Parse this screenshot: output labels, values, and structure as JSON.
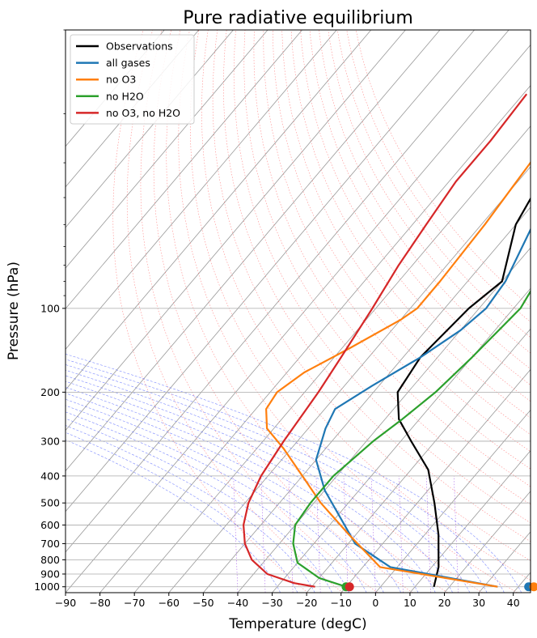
{
  "chart_data": {
    "type": "line",
    "subtype": "skew-T log-p",
    "title": "Pure radiative equilibrium",
    "xlabel": "Temperature (degC)",
    "ylabel": "Pressure (hPa)",
    "xlim": [
      -90,
      45
    ],
    "ylim_hPa": [
      1050,
      10
    ],
    "y_scale": "log",
    "x_ticks": [
      -90,
      -80,
      -70,
      -60,
      -50,
      -40,
      -30,
      -20,
      -10,
      0,
      10,
      20,
      30,
      40
    ],
    "y_ticks": [
      100,
      200,
      300,
      400,
      500,
      600,
      700,
      800,
      900,
      1000
    ],
    "y_tick_labels": [
      "100",
      "200",
      "300",
      "400",
      "500",
      "600",
      "700",
      "800",
      "900",
      "1000"
    ],
    "legend_position": "top-left",
    "grid": true,
    "background_lines": [
      "isotherms (gray)",
      "dry adiabats (red dotted)",
      "moist adiabats (blue dashed)",
      "mixing ratio lines (purple dotted)"
    ],
    "series": [
      {
        "name": "Observations",
        "color": "#000000",
        "points": [
          [
            15.5,
            1000
          ],
          [
            12,
            850
          ],
          [
            4,
            650
          ],
          [
            -5,
            500
          ],
          [
            -15,
            380
          ],
          [
            -27,
            300
          ],
          [
            -36,
            250
          ],
          [
            -43,
            200
          ],
          [
            -45,
            150
          ],
          [
            -43,
            100
          ],
          [
            -40,
            80
          ],
          [
            -50,
            50
          ],
          [
            -55,
            30
          ],
          [
            -55,
            20
          ],
          [
            -56,
            10
          ]
        ]
      },
      {
        "name": "all gases",
        "color": "#1f77b4",
        "points": [
          [
            34,
            1000
          ],
          [
            -2,
            850
          ],
          [
            -18,
            700
          ],
          [
            -30,
            550
          ],
          [
            -40,
            450
          ],
          [
            -50,
            350
          ],
          [
            -55,
            270
          ],
          [
            -57,
            230
          ],
          [
            -52,
            190
          ],
          [
            -45,
            150
          ],
          [
            -40,
            120
          ],
          [
            -38,
            100
          ],
          [
            -39,
            80
          ],
          [
            -45,
            50
          ],
          [
            -55,
            30
          ],
          [
            -58,
            20
          ],
          [
            -62,
            10
          ]
        ]
      },
      {
        "name": "no O3",
        "color": "#ff7f0e",
        "points": [
          [
            34,
            1000
          ],
          [
            -5,
            850
          ],
          [
            -22,
            650
          ],
          [
            -38,
            500
          ],
          [
            -50,
            400
          ],
          [
            -62,
            320
          ],
          [
            -72,
            270
          ],
          [
            -77,
            230
          ],
          [
            -78,
            200
          ],
          [
            -75,
            170
          ],
          [
            -68,
            140
          ],
          [
            -60,
            110
          ],
          [
            -58,
            100
          ],
          [
            -58,
            80
          ],
          [
            -59,
            50
          ],
          [
            -61,
            30
          ],
          [
            -64,
            20
          ],
          [
            -64,
            10
          ]
        ]
      },
      {
        "name": "no H2O",
        "color": "#2ca02c",
        "points": [
          [
            -10,
            1000
          ],
          [
            -20,
            930
          ],
          [
            -30,
            820
          ],
          [
            -36,
            700
          ],
          [
            -40,
            600
          ],
          [
            -41,
            500
          ],
          [
            -41,
            400
          ],
          [
            -38,
            300
          ],
          [
            -35,
            250
          ],
          [
            -32,
            200
          ],
          [
            -30,
            150
          ],
          [
            -28,
            100
          ],
          [
            -30,
            80
          ],
          [
            -36,
            50
          ],
          [
            -46,
            30
          ],
          [
            -50,
            20
          ],
          [
            -58,
            10
          ]
        ]
      },
      {
        "name": "no O3, no H2O",
        "color": "#d62728",
        "points": [
          [
            -19,
            1000
          ],
          [
            -26,
            970
          ],
          [
            -36,
            900
          ],
          [
            -44,
            800
          ],
          [
            -50,
            700
          ],
          [
            -55,
            600
          ],
          [
            -59,
            500
          ],
          [
            -62,
            400
          ],
          [
            -64,
            300
          ],
          [
            -66,
            200
          ],
          [
            -68,
            150
          ],
          [
            -71,
            100
          ],
          [
            -74,
            70
          ],
          [
            -76,
            50
          ],
          [
            -78,
            35
          ],
          [
            -78,
            25
          ],
          [
            -79,
            17
          ]
        ]
      }
    ],
    "surface_markers": [
      {
        "series": "all gases",
        "color": "#1f77b4",
        "x": 43,
        "p": 1000
      },
      {
        "series": "no O3",
        "color": "#ff7f0e",
        "x": 44.5,
        "p": 1000
      },
      {
        "series": "no H2O",
        "color": "#2ca02c",
        "x": -10,
        "p": 1000
      },
      {
        "series": "no O3, no H2O",
        "color": "#d62728",
        "x": -9,
        "p": 1000
      }
    ]
  }
}
